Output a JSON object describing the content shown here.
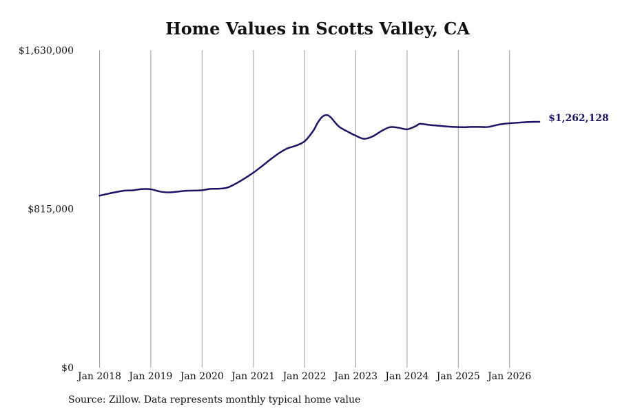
{
  "chart_data": {
    "type": "line",
    "title": "Home Values in Scotts Valley, CA",
    "xlabel": "",
    "ylabel": "",
    "ylim": [
      0,
      1630000
    ],
    "y_ticks": [
      {
        "value": 0,
        "label": "$0"
      },
      {
        "value": 815000,
        "label": "$815,000"
      },
      {
        "value": 1630000,
        "label": "$1,630,000"
      }
    ],
    "x_ticks": [
      {
        "value": "2018-01",
        "label": "Jan 2018"
      },
      {
        "value": "2019-01",
        "label": "Jan 2019"
      },
      {
        "value": "2020-01",
        "label": "Jan 2020"
      },
      {
        "value": "2021-01",
        "label": "Jan 2021"
      },
      {
        "value": "2022-01",
        "label": "Jan 2022"
      },
      {
        "value": "2023-01",
        "label": "Jan 2023"
      },
      {
        "value": "2024-01",
        "label": "Jan 2024"
      },
      {
        "value": "2025-01",
        "label": "Jan 2025"
      },
      {
        "value": "2026-01",
        "label": "Jan 2026"
      }
    ],
    "grid": {
      "vertical": true,
      "horizontal": false
    },
    "line_color": "#1b1464",
    "end_label": "$1,262,128",
    "series": [
      {
        "points": [
          [
            "2018-01",
            883000
          ],
          [
            "2018-03",
            893000
          ],
          [
            "2018-05",
            902000
          ],
          [
            "2018-07",
            909000
          ],
          [
            "2018-09",
            911000
          ],
          [
            "2018-11",
            917000
          ],
          [
            "2019-01",
            916000
          ],
          [
            "2019-03",
            905000
          ],
          [
            "2019-05",
            900000
          ],
          [
            "2019-07",
            903000
          ],
          [
            "2019-09",
            908000
          ],
          [
            "2019-11",
            909000
          ],
          [
            "2020-01",
            911000
          ],
          [
            "2020-03",
            918000
          ],
          [
            "2020-05",
            919000
          ],
          [
            "2020-07",
            925000
          ],
          [
            "2020-09",
            946000
          ],
          [
            "2020-11",
            972000
          ],
          [
            "2021-01",
            1001000
          ],
          [
            "2021-03",
            1034000
          ],
          [
            "2021-05",
            1069000
          ],
          [
            "2021-07",
            1101000
          ],
          [
            "2021-09",
            1126000
          ],
          [
            "2021-11",
            1140000
          ],
          [
            "2022-01",
            1162000
          ],
          [
            "2022-03",
            1215000
          ],
          [
            "2022-04",
            1255000
          ],
          [
            "2022-05",
            1285000
          ],
          [
            "2022-06",
            1297000
          ],
          [
            "2022-07",
            1288000
          ],
          [
            "2022-09",
            1239000
          ],
          [
            "2022-11",
            1213000
          ],
          [
            "2023-01",
            1191000
          ],
          [
            "2023-03",
            1175000
          ],
          [
            "2023-05",
            1188000
          ],
          [
            "2023-07",
            1215000
          ],
          [
            "2023-09",
            1235000
          ],
          [
            "2023-11",
            1232000
          ],
          [
            "2024-01",
            1224000
          ],
          [
            "2024-03",
            1240000
          ],
          [
            "2024-04",
            1252000
          ],
          [
            "2024-06",
            1247000
          ],
          [
            "2024-08",
            1243000
          ],
          [
            "2024-10",
            1239000
          ],
          [
            "2024-12",
            1236000
          ],
          [
            "2025-02",
            1235000
          ],
          [
            "2025-04",
            1236000
          ],
          [
            "2025-06",
            1236000
          ],
          [
            "2025-08",
            1236000
          ],
          [
            "2025-10",
            1246000
          ],
          [
            "2025-12",
            1253000
          ],
          [
            "2026-03",
            1258000
          ],
          [
            "2026-06",
            1262000
          ],
          [
            "2026-08",
            1262128
          ]
        ]
      }
    ]
  },
  "source_note": "Source: Zillow. Data represents monthly typical home value"
}
